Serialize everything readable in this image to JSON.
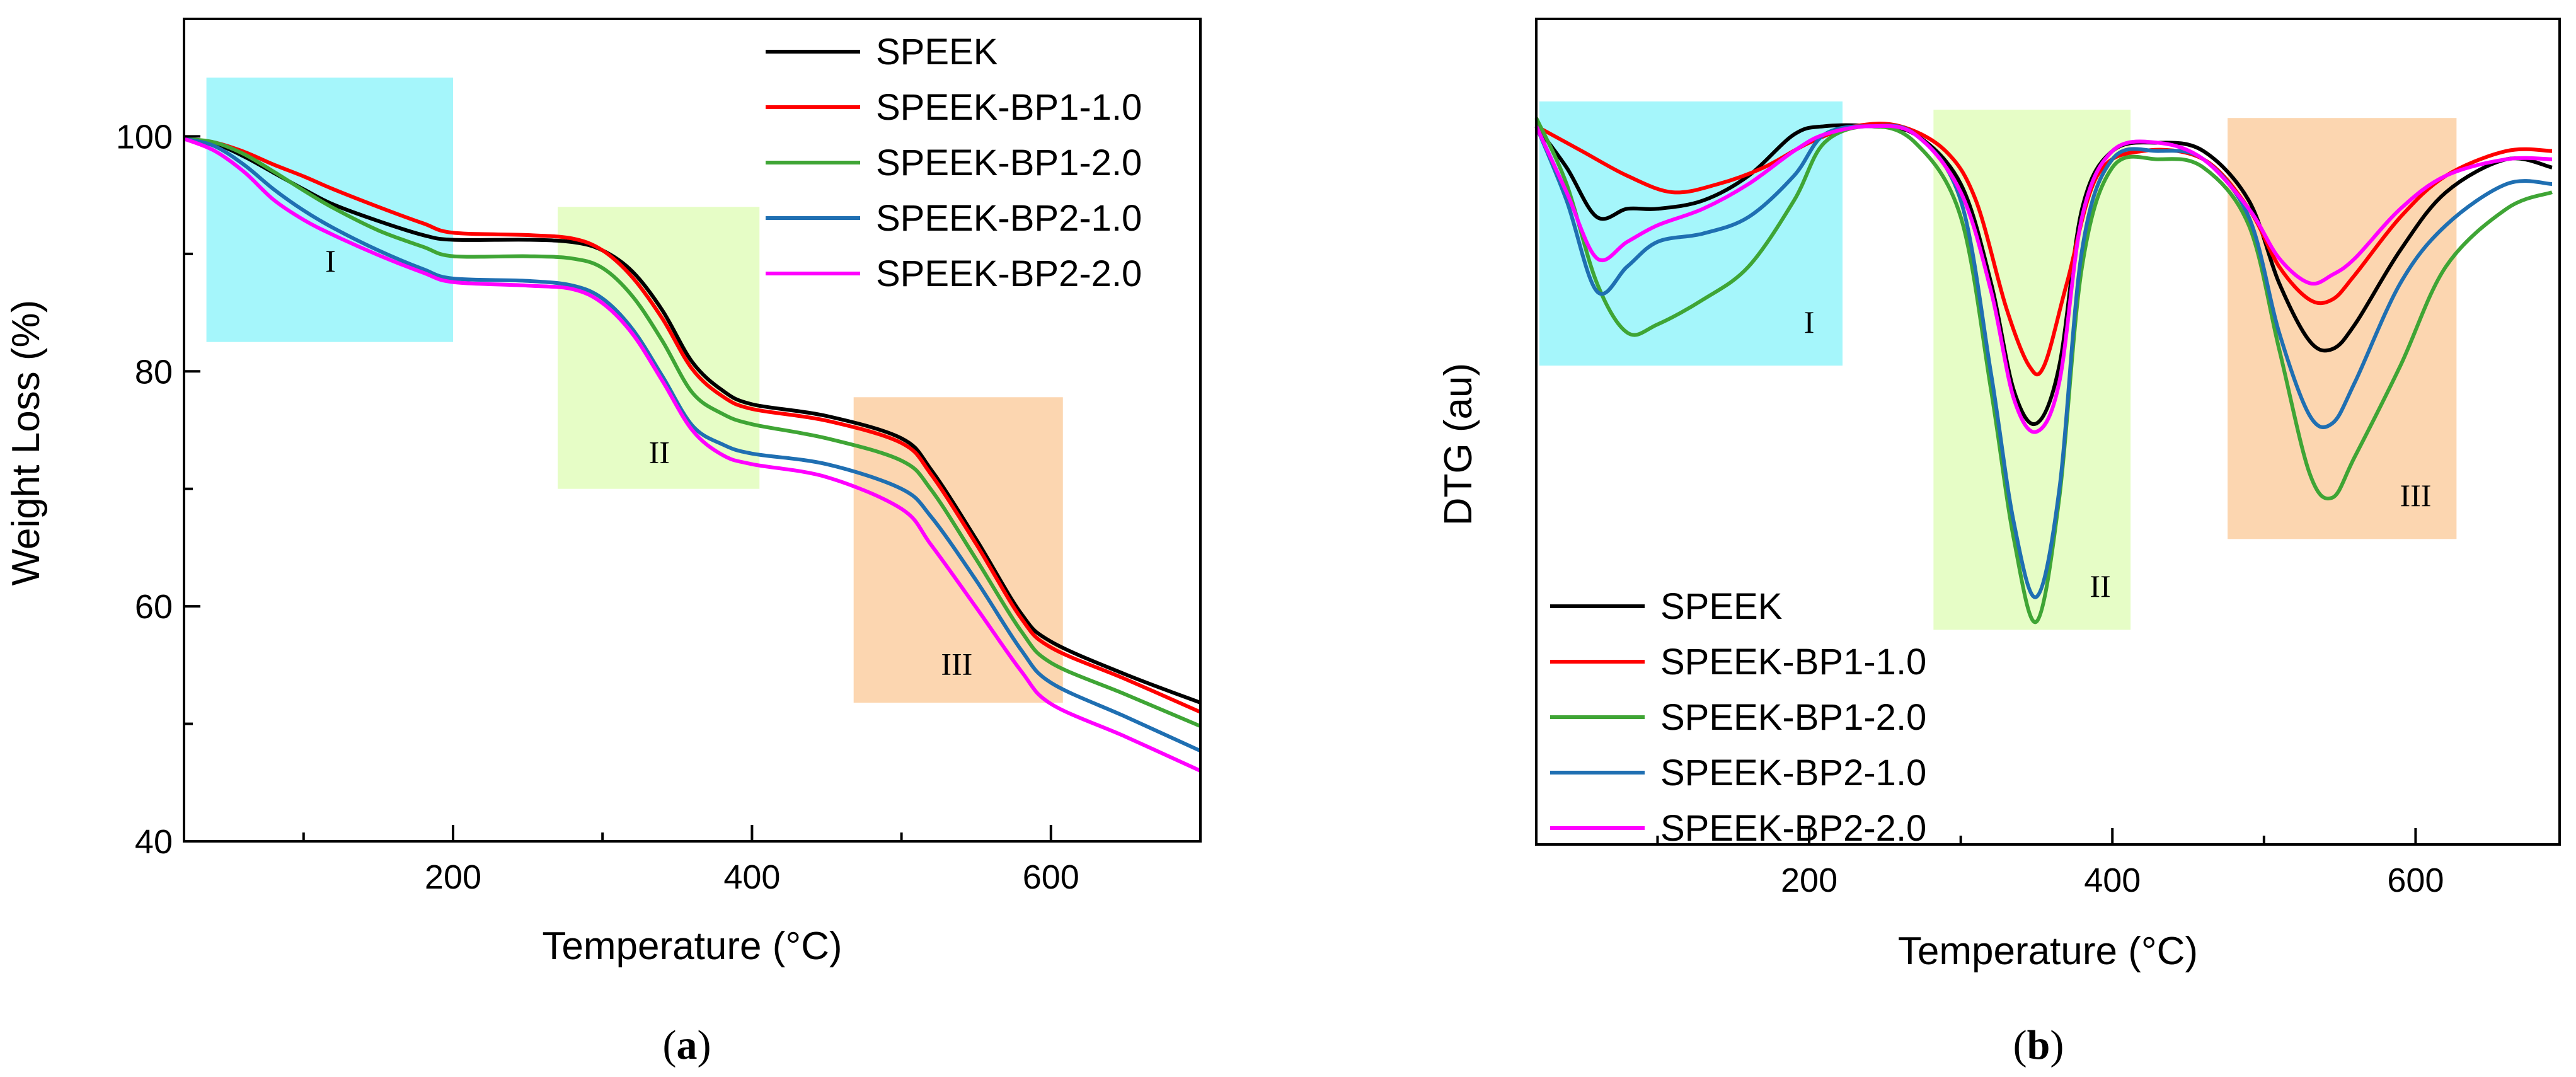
{
  "chart_data": [
    {
      "type": "line",
      "caption_letter": "a",
      "xlabel": "Temperature (°C)",
      "ylabel": "Weight Loss (%)",
      "xlim": [
        20,
        700
      ],
      "ylim": [
        40,
        110
      ],
      "xticks": [
        200,
        400,
        600
      ],
      "yticks": [
        40,
        60,
        80,
        100
      ],
      "legend_position": "top-right",
      "regions": [
        {
          "label": "I",
          "x": [
            35,
            200
          ],
          "y": [
            82.5,
            105
          ],
          "color": "#a5f6fb"
        },
        {
          "label": "II",
          "x": [
            270,
            405
          ],
          "y": [
            70,
            94
          ],
          "color": "#e6fdc6"
        },
        {
          "label": "III",
          "x": [
            468,
            608
          ],
          "y": [
            51.8,
            77.8
          ],
          "color": "#fcd6b0"
        }
      ],
      "series": [
        {
          "name": "SPEEK",
          "color": "#000000",
          "x": [
            20,
            40,
            60,
            80,
            100,
            120,
            150,
            180,
            200,
            250,
            280,
            300,
            320,
            340,
            360,
            380,
            400,
            450,
            500,
            520,
            550,
            580,
            600,
            650,
            700
          ],
          "y": [
            99.8,
            99.4,
            98.3,
            96.9,
            95.5,
            94.2,
            92.8,
            91.6,
            91.2,
            91.2,
            91.0,
            90.3,
            88.5,
            85.2,
            80.8,
            78.4,
            77.2,
            76.2,
            74.3,
            71.6,
            65.7,
            59.4,
            57.0,
            54.2,
            51.8
          ]
        },
        {
          "name": "SPEEK-BP1-1.0",
          "color": "#ff0000",
          "x": [
            20,
            40,
            60,
            80,
            100,
            120,
            150,
            180,
            200,
            250,
            280,
            300,
            320,
            340,
            360,
            380,
            400,
            450,
            500,
            520,
            550,
            580,
            600,
            650,
            700
          ],
          "y": [
            99.8,
            99.5,
            98.7,
            97.6,
            96.6,
            95.5,
            94.0,
            92.6,
            91.8,
            91.6,
            91.3,
            90.3,
            88.0,
            84.5,
            80.2,
            77.9,
            76.8,
            75.8,
            73.9,
            71.2,
            65.3,
            59.0,
            56.5,
            53.8,
            51.0
          ]
        },
        {
          "name": "SPEEK-BP1-2.0",
          "color": "#3fa535",
          "x": [
            20,
            40,
            60,
            80,
            100,
            120,
            150,
            180,
            200,
            250,
            280,
            300,
            320,
            340,
            360,
            380,
            400,
            450,
            500,
            520,
            550,
            580,
            600,
            650,
            700
          ],
          "y": [
            99.8,
            99.5,
            98.5,
            97.0,
            95.4,
            93.9,
            92.0,
            90.6,
            89.8,
            89.8,
            89.6,
            88.8,
            86.4,
            82.6,
            78.2,
            76.4,
            75.5,
            74.3,
            72.4,
            69.9,
            64.0,
            57.9,
            55.2,
            52.5,
            49.8
          ]
        },
        {
          "name": "SPEEK-BP2-1.0",
          "color": "#1f6fb2",
          "x": [
            20,
            40,
            60,
            80,
            100,
            120,
            150,
            180,
            200,
            250,
            280,
            300,
            320,
            340,
            360,
            380,
            400,
            450,
            500,
            520,
            550,
            580,
            600,
            650,
            700
          ],
          "y": [
            99.8,
            99.2,
            97.6,
            95.5,
            93.7,
            92.2,
            90.3,
            88.7,
            87.9,
            87.7,
            87.3,
            86.2,
            83.6,
            79.6,
            75.4,
            73.8,
            73.0,
            72.1,
            70.0,
            67.6,
            62.2,
            56.3,
            53.5,
            50.6,
            47.7
          ]
        },
        {
          "name": "SPEEK-BP2-2.0",
          "color": "#ff00ff",
          "x": [
            20,
            40,
            60,
            80,
            100,
            120,
            150,
            180,
            200,
            250,
            280,
            300,
            320,
            340,
            360,
            380,
            400,
            450,
            500,
            520,
            550,
            580,
            600,
            650,
            700
          ],
          "y": [
            99.8,
            98.8,
            97.0,
            94.6,
            92.9,
            91.6,
            89.9,
            88.4,
            87.6,
            87.3,
            87.0,
            85.8,
            83.2,
            79.2,
            75.0,
            72.9,
            72.1,
            71.0,
            68.3,
            65.2,
            59.9,
            54.5,
            51.7,
            48.9,
            46.0
          ]
        }
      ]
    },
    {
      "type": "line",
      "caption_letter": "b",
      "xlabel": "Temperature (°C)",
      "ylabel": "DTG (au)",
      "xlim": [
        20,
        695
      ],
      "ylim": [
        0,
        1
      ],
      "xticks": [
        200,
        400,
        600
      ],
      "yticks": [],
      "legend_position": "bottom-left",
      "regions": [
        {
          "label": "I",
          "x": [
            22,
            222
          ],
          "y": [
            0.58,
            0.9
          ],
          "color": "#a5f6fb"
        },
        {
          "label": "II",
          "x": [
            282,
            412
          ],
          "y": [
            0.26,
            0.89
          ],
          "color": "#e6fdc6"
        },
        {
          "label": "III",
          "x": [
            476,
            627
          ],
          "y": [
            0.37,
            0.88
          ],
          "color": "#fcd6b0"
        }
      ],
      "series": [
        {
          "name": "SPEEK",
          "color": "#000000",
          "x": [
            20,
            40,
            60,
            80,
            100,
            130,
            160,
            190,
            210,
            240,
            270,
            300,
            320,
            335,
            350,
            365,
            380,
            400,
            430,
            460,
            490,
            510,
            530,
            545,
            560,
            590,
            620,
            660,
            690
          ],
          "y": [
            0.87,
            0.82,
            0.76,
            0.77,
            0.77,
            0.78,
            0.81,
            0.86,
            0.87,
            0.87,
            0.86,
            0.8,
            0.68,
            0.55,
            0.51,
            0.58,
            0.77,
            0.84,
            0.85,
            0.84,
            0.78,
            0.68,
            0.61,
            0.6,
            0.63,
            0.72,
            0.79,
            0.83,
            0.82
          ]
        },
        {
          "name": "SPEEK-BP1-1.0",
          "color": "#ff0000",
          "x": [
            20,
            50,
            80,
            110,
            140,
            170,
            200,
            230,
            260,
            290,
            310,
            330,
            345,
            355,
            370,
            390,
            420,
            460,
            490,
            510,
            530,
            545,
            560,
            590,
            620,
            660,
            690
          ],
          "y": [
            0.87,
            0.84,
            0.81,
            0.79,
            0.8,
            0.82,
            0.85,
            0.87,
            0.87,
            0.84,
            0.78,
            0.65,
            0.58,
            0.58,
            0.68,
            0.81,
            0.84,
            0.83,
            0.77,
            0.7,
            0.66,
            0.66,
            0.69,
            0.76,
            0.81,
            0.84,
            0.84
          ]
        },
        {
          "name": "SPEEK-BP1-2.0",
          "color": "#3fa535",
          "x": [
            20,
            40,
            60,
            80,
            100,
            130,
            160,
            190,
            210,
            240,
            270,
            300,
            320,
            335,
            350,
            365,
            380,
            400,
            430,
            460,
            490,
            510,
            530,
            545,
            560,
            590,
            620,
            660,
            690
          ],
          "y": [
            0.88,
            0.8,
            0.68,
            0.62,
            0.63,
            0.66,
            0.7,
            0.78,
            0.85,
            0.87,
            0.85,
            0.76,
            0.55,
            0.37,
            0.27,
            0.42,
            0.7,
            0.82,
            0.83,
            0.82,
            0.75,
            0.6,
            0.45,
            0.42,
            0.47,
            0.58,
            0.7,
            0.77,
            0.79
          ]
        },
        {
          "name": "SPEEK-BP2-1.0",
          "color": "#1f6fb2",
          "x": [
            20,
            40,
            60,
            80,
            100,
            130,
            160,
            190,
            210,
            240,
            270,
            300,
            320,
            335,
            350,
            365,
            380,
            400,
            430,
            460,
            490,
            510,
            530,
            545,
            560,
            590,
            620,
            660,
            690
          ],
          "y": [
            0.87,
            0.78,
            0.67,
            0.7,
            0.73,
            0.74,
            0.76,
            0.81,
            0.86,
            0.87,
            0.86,
            0.78,
            0.57,
            0.39,
            0.3,
            0.43,
            0.72,
            0.83,
            0.84,
            0.83,
            0.76,
            0.62,
            0.52,
            0.51,
            0.56,
            0.68,
            0.75,
            0.8,
            0.8
          ]
        },
        {
          "name": "SPEEK-BP2-2.0",
          "color": "#ff00ff",
          "x": [
            20,
            40,
            60,
            80,
            100,
            130,
            160,
            190,
            210,
            240,
            270,
            300,
            320,
            335,
            350,
            365,
            380,
            400,
            430,
            460,
            490,
            510,
            530,
            545,
            560,
            590,
            620,
            660,
            690
          ],
          "y": [
            0.87,
            0.79,
            0.71,
            0.73,
            0.75,
            0.77,
            0.8,
            0.84,
            0.86,
            0.87,
            0.86,
            0.79,
            0.67,
            0.54,
            0.5,
            0.56,
            0.76,
            0.84,
            0.85,
            0.83,
            0.77,
            0.71,
            0.68,
            0.69,
            0.71,
            0.77,
            0.81,
            0.83,
            0.83
          ]
        }
      ]
    }
  ]
}
